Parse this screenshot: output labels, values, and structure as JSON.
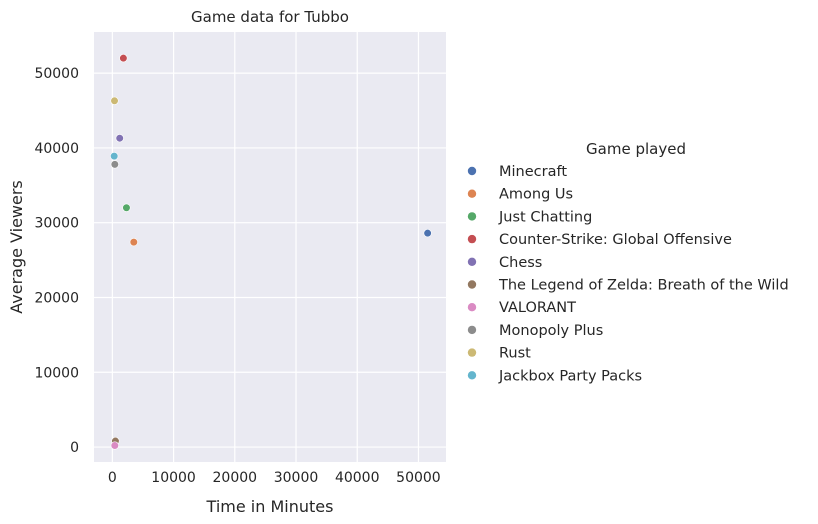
{
  "chart_data": {
    "type": "scatter",
    "title": "Game data for Tubbo",
    "xlabel": "Time in Minutes",
    "ylabel": "Average Viewers",
    "xlim": [
      -3000,
      54500
    ],
    "ylim": [
      -2000,
      55500
    ],
    "xticks": [
      0,
      10000,
      20000,
      30000,
      40000,
      50000
    ],
    "yticks": [
      0,
      10000,
      20000,
      30000,
      40000,
      50000
    ],
    "grid": true,
    "legend_title": "Game played",
    "legend_position": "right",
    "series": [
      {
        "name": "Minecraft",
        "color": "#4c72b0",
        "points": [
          [
            51500,
            28600
          ]
        ]
      },
      {
        "name": "Among Us",
        "color": "#dd8452",
        "points": [
          [
            3500,
            27400
          ]
        ]
      },
      {
        "name": "Just Chatting",
        "color": "#55a868",
        "points": [
          [
            2300,
            32000
          ]
        ]
      },
      {
        "name": "Counter-Strike: Global Offensive",
        "color": "#c44e52",
        "points": [
          [
            1800,
            52000
          ]
        ]
      },
      {
        "name": "Chess",
        "color": "#8172b3",
        "points": [
          [
            1200,
            41300
          ]
        ]
      },
      {
        "name": "The Legend of Zelda: Breath of the Wild",
        "color": "#937860",
        "points": [
          [
            500,
            800
          ]
        ]
      },
      {
        "name": "VALORANT",
        "color": "#da8bc3",
        "points": [
          [
            400,
            200
          ]
        ]
      },
      {
        "name": "Monopoly Plus",
        "color": "#8c8c8c",
        "points": [
          [
            400,
            37800
          ]
        ]
      },
      {
        "name": "Rust",
        "color": "#ccb974",
        "points": [
          [
            350,
            46300
          ]
        ]
      },
      {
        "name": "Jackbox Party Packs",
        "color": "#64b5cd",
        "points": [
          [
            300,
            38900
          ]
        ]
      }
    ]
  }
}
